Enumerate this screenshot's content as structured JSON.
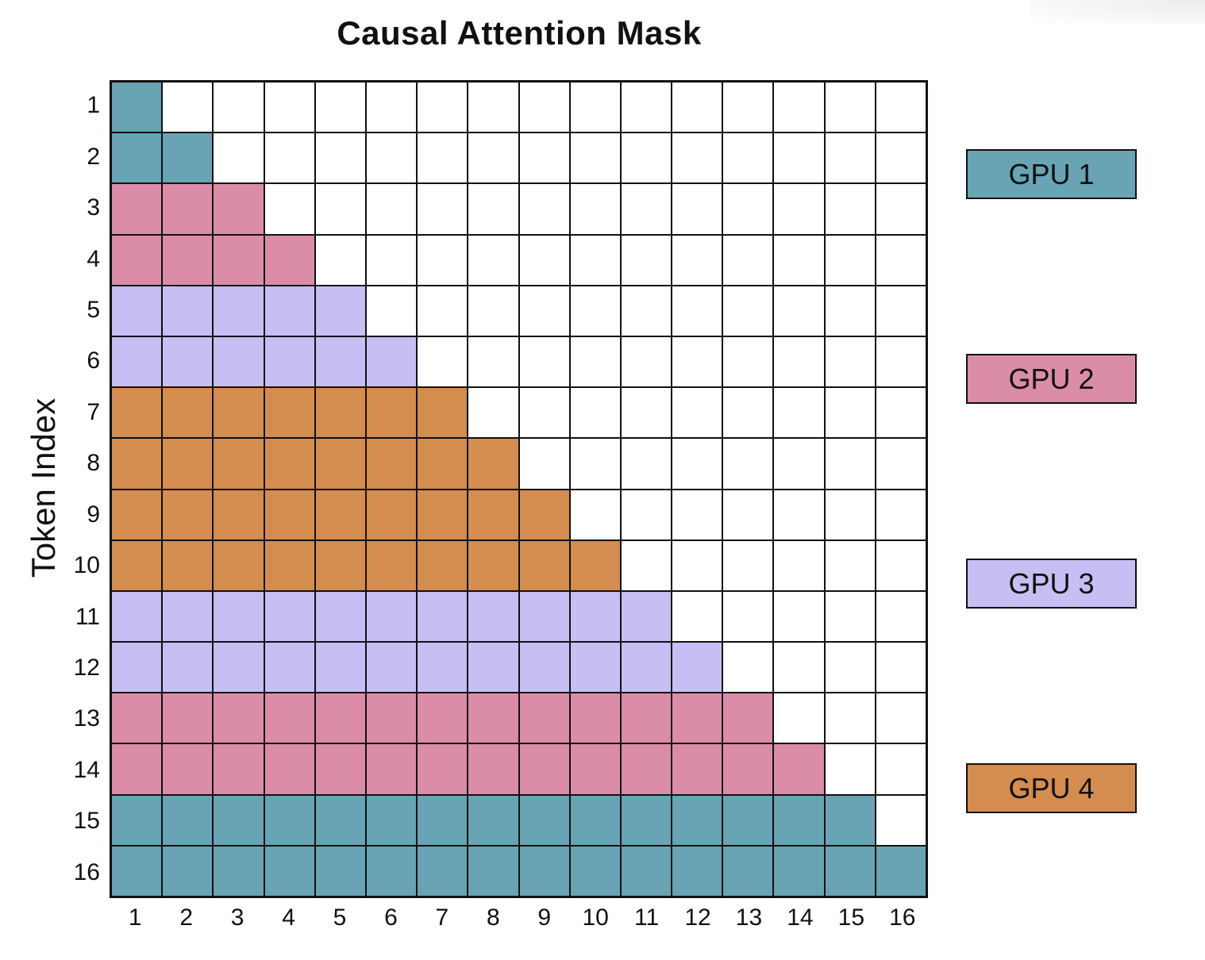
{
  "chart_data": {
    "type": "heatmap",
    "title": "Causal Attention Mask",
    "ylabel": "Token Index",
    "xlabel": "",
    "row_labels": [
      "1",
      "2",
      "3",
      "4",
      "5",
      "6",
      "7",
      "8",
      "9",
      "10",
      "11",
      "12",
      "13",
      "14",
      "15",
      "16"
    ],
    "col_labels": [
      "1",
      "2",
      "3",
      "4",
      "5",
      "6",
      "7",
      "8",
      "9",
      "10",
      "11",
      "12",
      "13",
      "14",
      "15",
      "16"
    ],
    "row_gpu": [
      1,
      1,
      2,
      2,
      3,
      3,
      4,
      4,
      4,
      4,
      3,
      3,
      2,
      2,
      1,
      1
    ],
    "mask": "lower-triangular (row i attends to columns 1..i)",
    "legend": [
      {
        "label": "GPU 1",
        "color": "#68a4b4"
      },
      {
        "label": "GPU 2",
        "color": "#db8ca9"
      },
      {
        "label": "GPU 3",
        "color": "#c8bef3"
      },
      {
        "label": "GPU 4",
        "color": "#d48c4f"
      }
    ],
    "legend_position": "right"
  },
  "colors": {
    "gpu1": "#68a4b4",
    "gpu2": "#db8ca9",
    "gpu3": "#c8bef3",
    "gpu4": "#d48c4f",
    "empty": "#ffffff"
  }
}
